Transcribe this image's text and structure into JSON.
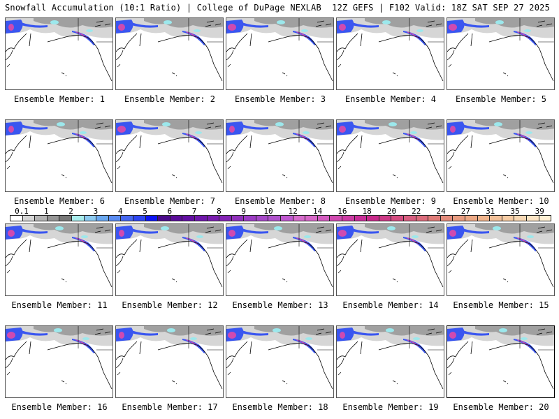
{
  "header": {
    "title_left": "Snowfall Accumulation (10:1 Ratio) | College of DuPage NEXLAB",
    "title_right": "12Z GEFS | F102 Valid: 18Z SAT SEP 27 2025"
  },
  "panels": [
    {
      "label": "Ensemble Member: 1"
    },
    {
      "label": "Ensemble Member: 2"
    },
    {
      "label": "Ensemble Member: 3"
    },
    {
      "label": "Ensemble Member: 4"
    },
    {
      "label": "Ensemble Member: 5"
    },
    {
      "label": "Ensemble Member: 6"
    },
    {
      "label": "Ensemble Member: 7"
    },
    {
      "label": "Ensemble Member: 8"
    },
    {
      "label": "Ensemble Member: 9"
    },
    {
      "label": "Ensemble Member: 10"
    },
    {
      "label": "Ensemble Member: 11"
    },
    {
      "label": "Ensemble Member: 12"
    },
    {
      "label": "Ensemble Member: 13"
    },
    {
      "label": "Ensemble Member: 14"
    },
    {
      "label": "Ensemble Member: 15"
    },
    {
      "label": "Ensemble Member: 16"
    },
    {
      "label": "Ensemble Member: 17"
    },
    {
      "label": "Ensemble Member: 18"
    },
    {
      "label": "Ensemble Member: 19"
    },
    {
      "label": "Ensemble Member: 20"
    }
  ],
  "colorbar": {
    "labels": [
      "0.1",
      "1",
      "2",
      "3",
      "4",
      "5",
      "6",
      "7",
      "8",
      "9",
      "10",
      "12",
      "14",
      "16",
      "18",
      "20",
      "22",
      "24",
      "27",
      "31",
      "35",
      "39"
    ],
    "colors": [
      "#ffffff",
      "#d6d6d6",
      "#b4b4b4",
      "#969696",
      "#787878",
      "#a8ecec",
      "#8ccaf0",
      "#6aa8f0",
      "#5a8cf2",
      "#4668f0",
      "#2e46f2",
      "#0c14f4",
      "#4a0a8a",
      "#5a0c98",
      "#620ea2",
      "#6e16aa",
      "#7a1cb0",
      "#8424b6",
      "#9030bc",
      "#9c3cc4",
      "#a648c8",
      "#b052cc",
      "#c058d0",
      "#d66ccc",
      "#d868c8",
      "#d45cc0",
      "#d04ab0",
      "#cc3ca4",
      "#c82e98",
      "#c82a8a",
      "#cc3a86",
      "#d44c80",
      "#d85e80",
      "#dc6c7c",
      "#e07c78",
      "#e48c7c",
      "#e89c80",
      "#eca884",
      "#f0b48c",
      "#f2c098",
      "#f6cca4",
      "#f8d8b4",
      "#fce4c4",
      "#fff0d4"
    ]
  },
  "map_colors": {
    "land_snow_light": "#d6d6d6",
    "land_snow_mid": "#a0a0a0",
    "snow_cyan": "#9ce8ec",
    "snow_blue": "#3a56f0",
    "snow_magenta": "#d04ab0",
    "coast": "#000000"
  }
}
